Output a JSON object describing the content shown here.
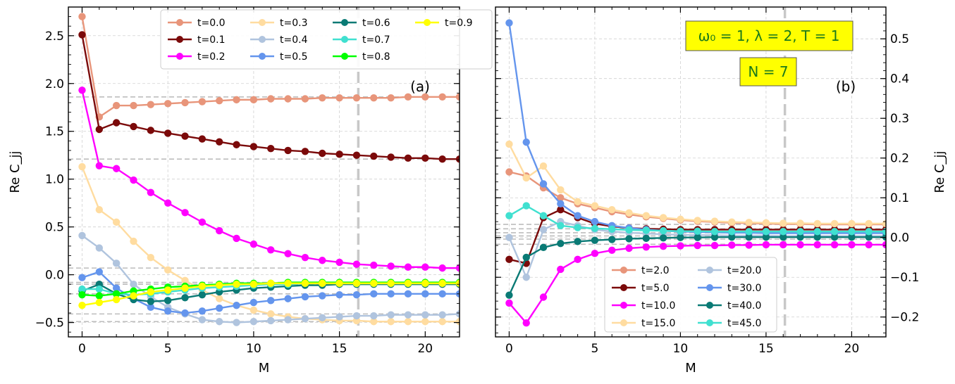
{
  "figure": {
    "info_boxes": [
      "ω₀ = 1, λ = 2, T = 1",
      "N = 7"
    ],
    "info_box_color": "#ffff00",
    "info_text_color": "#1b7a1b"
  },
  "chart_data": [
    {
      "type": "line",
      "panel_label": "(a)",
      "xlabel": "M",
      "ylabel": "Re C_jj",
      "xlim": [
        -0.8,
        22
      ],
      "ylim": [
        -0.65,
        2.8
      ],
      "xticks": [
        0,
        5,
        10,
        15,
        20
      ],
      "xtick_labels": [
        "0",
        "5",
        "10",
        "15",
        "20"
      ],
      "yticks": [
        -0.5,
        0.0,
        0.5,
        1.0,
        1.5,
        2.0,
        2.5
      ],
      "ytick_labels": [
        "−0.5",
        "0.0",
        "0.5",
        "1.0",
        "1.5",
        "2.0",
        "2.5"
      ],
      "grid": true,
      "y_axis_side": "left",
      "legend_position": "top-right",
      "legend_columns": 4,
      "vertical_reference": 16.1,
      "dashed_references": [
        1.86,
        1.21,
        0.07,
        -0.08,
        -0.1,
        -0.2,
        -0.41,
        -0.49
      ],
      "x": [
        0,
        1,
        2,
        3,
        4,
        5,
        6,
        7,
        8,
        9,
        10,
        11,
        12,
        13,
        14,
        15,
        16,
        17,
        18,
        19,
        20,
        21,
        22
      ],
      "series": [
        {
          "name": "t=0.0",
          "color": "#e8957a",
          "values": [
            2.7,
            1.65,
            1.77,
            1.77,
            1.78,
            1.79,
            1.8,
            1.81,
            1.82,
            1.83,
            1.83,
            1.84,
            1.84,
            1.84,
            1.85,
            1.85,
            1.85,
            1.85,
            1.85,
            1.86,
            1.86,
            1.86,
            1.86
          ]
        },
        {
          "name": "t=0.1",
          "color": "#7b0a0a",
          "values": [
            2.51,
            1.52,
            1.59,
            1.55,
            1.51,
            1.48,
            1.45,
            1.42,
            1.39,
            1.36,
            1.34,
            1.32,
            1.3,
            1.29,
            1.27,
            1.26,
            1.25,
            1.24,
            1.23,
            1.22,
            1.22,
            1.21,
            1.21
          ]
        },
        {
          "name": "t=0.2",
          "color": "#ff00ff",
          "values": [
            1.93,
            1.14,
            1.11,
            0.99,
            0.86,
            0.75,
            0.65,
            0.55,
            0.46,
            0.38,
            0.32,
            0.26,
            0.22,
            0.18,
            0.15,
            0.13,
            0.11,
            0.1,
            0.09,
            0.08,
            0.08,
            0.07,
            0.07
          ]
        },
        {
          "name": "t=0.3",
          "color": "#ffdca0",
          "values": [
            1.13,
            0.68,
            0.55,
            0.35,
            0.18,
            0.05,
            -0.06,
            -0.16,
            -0.25,
            -0.32,
            -0.37,
            -0.41,
            -0.44,
            -0.46,
            -0.47,
            -0.48,
            -0.48,
            -0.49,
            -0.49,
            -0.49,
            -0.49,
            -0.49,
            -0.49
          ]
        },
        {
          "name": "t=0.4",
          "color": "#b0c4de",
          "values": [
            0.41,
            0.28,
            0.12,
            -0.1,
            -0.23,
            -0.34,
            -0.41,
            -0.47,
            -0.49,
            -0.5,
            -0.49,
            -0.48,
            -0.47,
            -0.46,
            -0.45,
            -0.44,
            -0.43,
            -0.43,
            -0.42,
            -0.42,
            -0.42,
            -0.42,
            -0.41
          ]
        },
        {
          "name": "t=0.5",
          "color": "#6495ed",
          "values": [
            -0.03,
            0.03,
            -0.14,
            -0.25,
            -0.34,
            -0.38,
            -0.4,
            -0.38,
            -0.35,
            -0.32,
            -0.29,
            -0.27,
            -0.25,
            -0.23,
            -0.22,
            -0.21,
            -0.21,
            -0.2,
            -0.2,
            -0.2,
            -0.2,
            -0.2,
            -0.2
          ]
        },
        {
          "name": "t=0.6",
          "color": "#0a7a75",
          "values": [
            -0.17,
            -0.1,
            -0.2,
            -0.26,
            -0.28,
            -0.27,
            -0.24,
            -0.21,
            -0.18,
            -0.16,
            -0.14,
            -0.13,
            -0.12,
            -0.11,
            -0.11,
            -0.1,
            -0.1,
            -0.1,
            -0.1,
            -0.1,
            -0.1,
            -0.1,
            -0.1
          ]
        },
        {
          "name": "t=0.7",
          "color": "#40e0d0",
          "values": [
            -0.15,
            -0.15,
            -0.2,
            -0.21,
            -0.2,
            -0.18,
            -0.16,
            -0.14,
            -0.13,
            -0.12,
            -0.11,
            -0.1,
            -0.1,
            -0.09,
            -0.09,
            -0.09,
            -0.09,
            -0.09,
            -0.09,
            -0.09,
            -0.09,
            -0.09,
            -0.09
          ]
        },
        {
          "name": "t=0.8",
          "color": "#00ff00",
          "values": [
            -0.21,
            -0.22,
            -0.2,
            -0.17,
            -0.15,
            -0.13,
            -0.12,
            -0.11,
            -0.1,
            -0.09,
            -0.09,
            -0.09,
            -0.08,
            -0.08,
            -0.08,
            -0.08,
            -0.08,
            -0.08,
            -0.08,
            -0.08,
            -0.08,
            -0.08,
            -0.08
          ]
        },
        {
          "name": "t=0.9",
          "color": "#ffff00",
          "values": [
            -0.32,
            -0.29,
            -0.26,
            -0.22,
            -0.18,
            -0.16,
            -0.14,
            -0.12,
            -0.11,
            -0.1,
            -0.1,
            -0.09,
            -0.09,
            -0.09,
            -0.09,
            -0.09,
            -0.09,
            -0.09,
            -0.09,
            -0.09,
            -0.09,
            -0.09,
            -0.09
          ]
        }
      ]
    },
    {
      "type": "line",
      "panel_label": "(b)",
      "xlabel": "M",
      "ylabel": "Re C_jj",
      "xlim": [
        -0.8,
        22
      ],
      "ylim": [
        -0.25,
        0.58
      ],
      "xticks": [
        0,
        5,
        10,
        15,
        20
      ],
      "xtick_labels": [
        "0",
        "5",
        "10",
        "15",
        "20"
      ],
      "yticks": [
        -0.2,
        -0.1,
        0.0,
        0.1,
        0.2,
        0.3,
        0.4,
        0.5
      ],
      "ytick_labels": [
        "−0.2",
        "−0.1",
        "0.0",
        "0.1",
        "0.2",
        "0.3",
        "0.4",
        "0.5"
      ],
      "grid": true,
      "y_axis_side": "right",
      "legend_position": "bottom-center",
      "legend_columns": 2,
      "vertical_reference": 16.1,
      "dashed_references": [
        0.033,
        0.022,
        0.012,
        0.004,
        -0.004,
        -0.017
      ],
      "x": [
        0,
        1,
        2,
        3,
        4,
        5,
        6,
        7,
        8,
        9,
        10,
        11,
        12,
        13,
        14,
        15,
        16,
        17,
        18,
        19,
        20,
        21,
        22
      ],
      "series": [
        {
          "name": "t=2.0",
          "color": "#e8957a",
          "values": [
            0.165,
            0.155,
            0.125,
            0.1,
            0.085,
            0.075,
            0.065,
            0.058,
            0.052,
            0.048,
            0.044,
            0.041,
            0.039,
            0.037,
            0.036,
            0.035,
            0.034,
            0.034,
            0.033,
            0.033,
            0.033,
            0.033,
            0.033
          ]
        },
        {
          "name": "t=5.0",
          "color": "#7b0a0a",
          "values": [
            -0.055,
            -0.065,
            0.05,
            0.07,
            0.05,
            0.035,
            0.028,
            0.024,
            0.022,
            0.021,
            0.02,
            0.02,
            0.02,
            0.02,
            0.02,
            0.02,
            0.02,
            0.02,
            0.02,
            0.02,
            0.02,
            0.02,
            0.02
          ]
        },
        {
          "name": "t=10.0",
          "color": "#ff00ff",
          "values": [
            -0.165,
            -0.215,
            -0.15,
            -0.08,
            -0.055,
            -0.04,
            -0.032,
            -0.027,
            -0.024,
            -0.022,
            -0.021,
            -0.02,
            -0.02,
            -0.019,
            -0.019,
            -0.018,
            -0.018,
            -0.018,
            -0.018,
            -0.018,
            -0.018,
            -0.018,
            -0.018
          ]
        },
        {
          "name": "t=15.0",
          "color": "#ffdca0",
          "values": [
            0.235,
            0.15,
            0.18,
            0.12,
            0.09,
            0.08,
            0.07,
            0.062,
            0.055,
            0.05,
            0.046,
            0.043,
            0.041,
            0.039,
            0.038,
            0.037,
            0.036,
            0.036,
            0.035,
            0.035,
            0.035,
            0.035,
            0.035
          ]
        },
        {
          "name": "t=20.0",
          "color": "#b0c4de",
          "values": [
            0.0,
            -0.1,
            0.02,
            0.04,
            0.03,
            0.02,
            0.015,
            0.012,
            0.01,
            0.008,
            0.007,
            0.006,
            0.006,
            0.005,
            0.005,
            0.005,
            0.004,
            0.004,
            0.004,
            0.004,
            0.004,
            0.004,
            0.004
          ]
        },
        {
          "name": "t=30.0",
          "color": "#6495ed",
          "values": [
            0.54,
            0.24,
            0.135,
            0.085,
            0.055,
            0.04,
            0.03,
            0.024,
            0.02,
            0.017,
            0.015,
            0.014,
            0.013,
            0.012,
            0.012,
            0.011,
            0.011,
            0.011,
            0.011,
            0.011,
            0.011,
            0.011,
            0.011
          ]
        },
        {
          "name": "t=40.0",
          "color": "#0a7a75",
          "values": [
            -0.145,
            -0.05,
            -0.025,
            -0.015,
            -0.01,
            -0.007,
            -0.005,
            -0.003,
            -0.002,
            -0.001,
            0.0,
            0.0,
            0.001,
            0.001,
            0.001,
            0.001,
            0.001,
            0.001,
            0.001,
            0.001,
            0.001,
            0.001,
            0.001
          ]
        },
        {
          "name": "t=45.0",
          "color": "#40e0d0",
          "values": [
            0.055,
            0.08,
            0.055,
            0.03,
            0.025,
            0.023,
            0.021,
            0.019,
            0.018,
            0.017,
            0.016,
            0.016,
            0.015,
            0.015,
            0.015,
            0.015,
            0.015,
            0.015,
            0.015,
            0.015,
            0.015,
            0.015,
            0.015
          ]
        }
      ]
    }
  ]
}
